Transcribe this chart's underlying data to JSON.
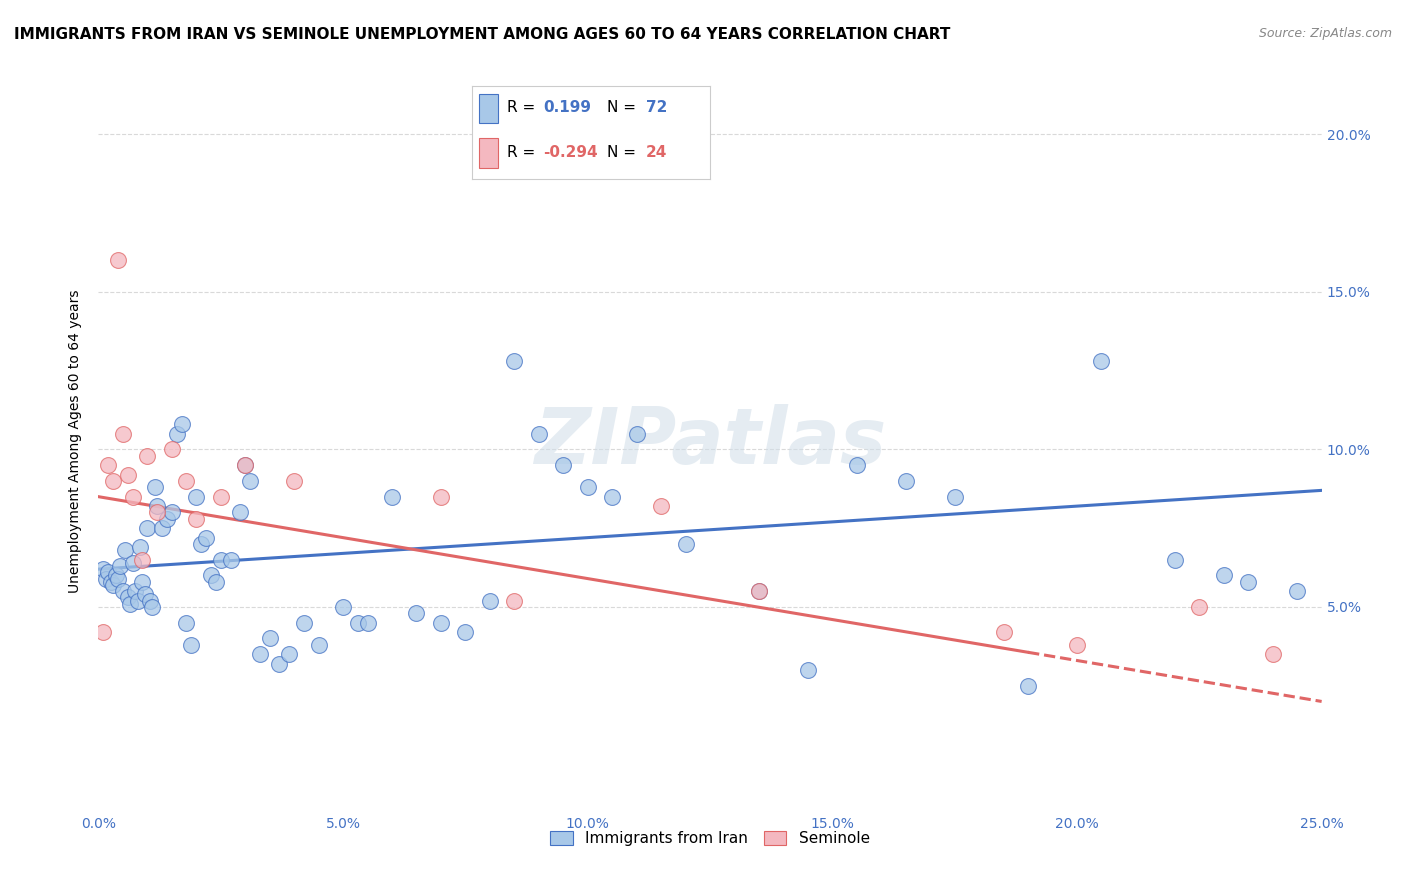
{
  "title": "IMMIGRANTS FROM IRAN VS SEMINOLE UNEMPLOYMENT AMONG AGES 60 TO 64 YEARS CORRELATION CHART",
  "source": "Source: ZipAtlas.com",
  "ylabel": "Unemployment Among Ages 60 to 64 years",
  "x_tick_labels": [
    "0.0%",
    "5.0%",
    "10.0%",
    "15.0%",
    "20.0%",
    "25.0%"
  ],
  "x_tick_values": [
    0,
    5,
    10,
    15,
    20,
    25
  ],
  "y_tick_labels": [
    "5.0%",
    "10.0%",
    "15.0%",
    "20.0%"
  ],
  "y_tick_values": [
    5,
    10,
    15,
    20
  ],
  "xlim": [
    0,
    25
  ],
  "ylim": [
    -1.5,
    22
  ],
  "legend_label1": "Immigrants from Iran",
  "legend_label2": "Seminole",
  "r1": "0.199",
  "n1": "72",
  "r2": "-0.294",
  "n2": "24",
  "color_blue_fill": "#a8c8e8",
  "color_pink_fill": "#f4b8c0",
  "color_blue_edge": "#4472c4",
  "color_pink_edge": "#e06666",
  "color_blue_line": "#4472c4",
  "color_pink_line": "#e06666",
  "title_fontsize": 11,
  "axis_label_fontsize": 10,
  "tick_fontsize": 10,
  "blue_line_y0": 6.2,
  "blue_line_y25": 8.7,
  "pink_line_y0": 8.5,
  "pink_line_y25": 2.0,
  "pink_solid_end_x": 19,
  "blue_scatter_x": [
    0.1,
    0.15,
    0.2,
    0.25,
    0.3,
    0.35,
    0.4,
    0.45,
    0.5,
    0.55,
    0.6,
    0.65,
    0.7,
    0.75,
    0.8,
    0.85,
    0.9,
    0.95,
    1.0,
    1.05,
    1.1,
    1.15,
    1.2,
    1.3,
    1.4,
    1.5,
    1.6,
    1.7,
    1.8,
    1.9,
    2.0,
    2.1,
    2.2,
    2.3,
    2.4,
    2.5,
    2.7,
    2.9,
    3.0,
    3.1,
    3.3,
    3.5,
    3.7,
    3.9,
    4.2,
    4.5,
    5.0,
    5.3,
    5.5,
    6.0,
    6.5,
    7.0,
    7.5,
    8.0,
    8.5,
    9.0,
    9.5,
    10.0,
    10.5,
    11.0,
    12.0,
    13.5,
    14.5,
    15.5,
    16.5,
    17.5,
    19.0,
    20.5,
    22.0,
    23.0,
    23.5,
    24.5
  ],
  "blue_scatter_y": [
    6.2,
    5.9,
    6.1,
    5.8,
    5.7,
    6.0,
    5.9,
    6.3,
    5.5,
    6.8,
    5.3,
    5.1,
    6.4,
    5.5,
    5.2,
    6.9,
    5.8,
    5.4,
    7.5,
    5.2,
    5.0,
    8.8,
    8.2,
    7.5,
    7.8,
    8.0,
    10.5,
    10.8,
    4.5,
    3.8,
    8.5,
    7.0,
    7.2,
    6.0,
    5.8,
    6.5,
    6.5,
    8.0,
    9.5,
    9.0,
    3.5,
    4.0,
    3.2,
    3.5,
    4.5,
    3.8,
    5.0,
    4.5,
    4.5,
    8.5,
    4.8,
    4.5,
    4.2,
    5.2,
    12.8,
    10.5,
    9.5,
    8.8,
    8.5,
    10.5,
    7.0,
    5.5,
    3.0,
    9.5,
    9.0,
    8.5,
    2.5,
    12.8,
    6.5,
    6.0,
    5.8,
    5.5
  ],
  "pink_scatter_x": [
    0.1,
    0.2,
    0.3,
    0.4,
    0.5,
    0.6,
    0.7,
    0.9,
    1.0,
    1.2,
    1.5,
    1.8,
    2.0,
    2.5,
    3.0,
    4.0,
    7.0,
    8.5,
    11.5,
    13.5,
    18.5,
    20.0,
    22.5,
    24.0
  ],
  "pink_scatter_y": [
    4.2,
    9.5,
    9.0,
    16.0,
    10.5,
    9.2,
    8.5,
    6.5,
    9.8,
    8.0,
    10.0,
    9.0,
    7.8,
    8.5,
    9.5,
    9.0,
    8.5,
    5.2,
    8.2,
    5.5,
    4.2,
    3.8,
    5.0,
    3.5
  ],
  "watermark": "ZIPatlas",
  "background_color": "#ffffff",
  "grid_color": "#d9d9d9"
}
